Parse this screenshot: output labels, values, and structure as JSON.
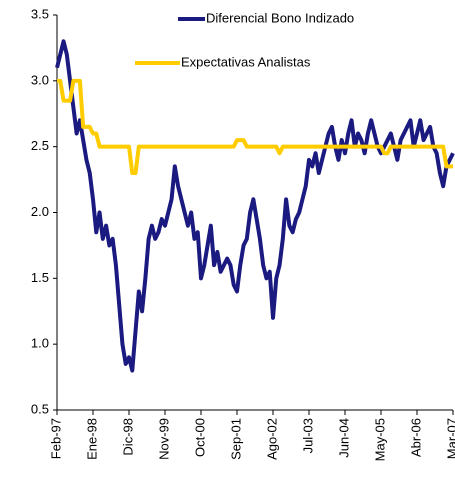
{
  "chart_data": {
    "type": "line",
    "categories": [
      "Feb-97",
      null,
      null,
      null,
      null,
      null,
      null,
      null,
      null,
      null,
      null,
      "Ene-98",
      null,
      null,
      null,
      null,
      null,
      null,
      null,
      null,
      null,
      null,
      "Dic-98",
      null,
      null,
      null,
      null,
      null,
      null,
      null,
      null,
      null,
      null,
      "Nov-99",
      null,
      null,
      null,
      null,
      null,
      null,
      null,
      null,
      null,
      null,
      "Oct-00",
      null,
      null,
      null,
      null,
      null,
      null,
      null,
      null,
      null,
      null,
      "Sep-01",
      null,
      null,
      null,
      null,
      null,
      null,
      null,
      null,
      null,
      null,
      "Ago-02",
      null,
      null,
      null,
      null,
      null,
      null,
      null,
      null,
      null,
      null,
      "Jul-03",
      null,
      null,
      null,
      null,
      null,
      null,
      null,
      null,
      null,
      null,
      "Jun-04",
      null,
      null,
      null,
      null,
      null,
      null,
      null,
      null,
      null,
      null,
      "May-05",
      null,
      null,
      null,
      null,
      null,
      null,
      null,
      null,
      null,
      null,
      "Abr-06",
      null,
      null,
      null,
      null,
      null,
      null,
      null,
      null,
      null,
      null,
      "Mar-07"
    ],
    "series": [
      {
        "name": "Diferencial Bono Indizado",
        "color": "#1a1a80",
        "values": [
          3.1,
          3.2,
          3.3,
          3.2,
          3.0,
          2.8,
          2.6,
          2.7,
          2.55,
          2.4,
          2.3,
          2.1,
          1.85,
          2.0,
          1.8,
          1.9,
          1.75,
          1.8,
          1.6,
          1.3,
          1.0,
          0.85,
          0.9,
          0.8,
          1.1,
          1.4,
          1.25,
          1.5,
          1.8,
          1.9,
          1.8,
          1.85,
          1.95,
          1.9,
          2.0,
          2.1,
          2.35,
          2.2,
          2.1,
          2.0,
          1.9,
          2.0,
          1.8,
          1.85,
          1.5,
          1.6,
          1.75,
          1.9,
          1.6,
          1.7,
          1.55,
          1.6,
          1.65,
          1.6,
          1.45,
          1.4,
          1.6,
          1.75,
          1.8,
          2.0,
          2.1,
          1.95,
          1.8,
          1.6,
          1.5,
          1.55,
          1.2,
          1.5,
          1.6,
          1.8,
          2.1,
          1.9,
          1.85,
          1.95,
          2.0,
          2.1,
          2.2,
          2.4,
          2.35,
          2.45,
          2.3,
          2.4,
          2.5,
          2.6,
          2.65,
          2.5,
          2.4,
          2.55,
          2.45,
          2.6,
          2.7,
          2.5,
          2.6,
          2.55,
          2.45,
          2.6,
          2.7,
          2.6,
          2.5,
          2.45,
          2.5,
          2.55,
          2.6,
          2.5,
          2.4,
          2.55,
          2.6,
          2.65,
          2.7,
          2.5,
          2.6,
          2.7,
          2.55,
          2.6,
          2.65,
          2.5,
          2.45,
          2.3,
          2.2,
          2.35,
          2.4,
          2.45
        ]
      },
      {
        "name": "Expectativas Analistas",
        "color": "#ffcc00",
        "values": [
          3.0,
          3.0,
          2.85,
          2.85,
          2.85,
          3.0,
          3.0,
          3.0,
          2.65,
          2.65,
          2.65,
          2.6,
          2.6,
          2.5,
          2.5,
          2.5,
          2.5,
          2.5,
          2.5,
          2.5,
          2.5,
          2.5,
          2.5,
          2.3,
          2.3,
          2.5,
          2.5,
          2.5,
          2.5,
          2.5,
          2.5,
          2.5,
          2.5,
          2.5,
          2.5,
          2.5,
          2.5,
          2.5,
          2.5,
          2.5,
          2.5,
          2.5,
          2.5,
          2.5,
          2.5,
          2.5,
          2.5,
          2.5,
          2.5,
          2.5,
          2.5,
          2.5,
          2.5,
          2.5,
          2.5,
          2.55,
          2.55,
          2.55,
          2.5,
          2.5,
          2.5,
          2.5,
          2.5,
          2.5,
          2.5,
          2.5,
          2.5,
          2.5,
          2.45,
          2.5,
          2.5,
          2.5,
          2.5,
          2.5,
          2.5,
          2.5,
          2.5,
          2.5,
          2.5,
          2.5,
          2.5,
          2.5,
          2.5,
          2.5,
          2.5,
          2.5,
          2.5,
          2.5,
          2.5,
          2.5,
          2.5,
          2.5,
          2.5,
          2.5,
          2.5,
          2.5,
          2.5,
          2.5,
          2.5,
          2.5,
          2.45,
          2.45,
          2.5,
          2.5,
          2.5,
          2.5,
          2.5,
          2.5,
          2.5,
          2.5,
          2.5,
          2.5,
          2.5,
          2.5,
          2.5,
          2.5,
          2.5,
          2.5,
          2.5,
          2.35,
          2.35,
          2.35
        ]
      }
    ],
    "ylim": [
      0.5,
      3.5
    ],
    "yticks": [
      0.5,
      {
        "value": 1,
        "label": "1.0"
      },
      1.5,
      {
        "value": 2,
        "label": "2.0"
      },
      2.5,
      {
        "value": 3,
        "label": "3.0"
      },
      3.5
    ],
    "grid": false,
    "legend": "top"
  }
}
